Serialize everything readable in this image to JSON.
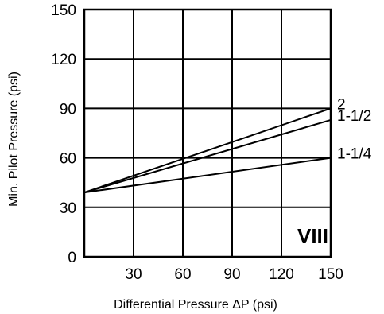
{
  "chart_data": {
    "type": "line",
    "title": "",
    "xlabel": "Differential Pressure ΔP (psi)",
    "ylabel": "Min. Pilot Pressure (psi)",
    "xlim": [
      0,
      150
    ],
    "ylim": [
      0,
      150
    ],
    "x_ticks": [
      30,
      60,
      90,
      120,
      150
    ],
    "y_ticks": [
      0,
      30,
      60,
      90,
      120,
      150
    ],
    "grid": true,
    "annotation": "VIII",
    "series": [
      {
        "name": "2",
        "x": [
          0,
          150
        ],
        "y": [
          39,
          90
        ]
      },
      {
        "name": "1-1/2",
        "x": [
          0,
          150
        ],
        "y": [
          39,
          83
        ]
      },
      {
        "name": "1-1/4",
        "x": [
          0,
          150
        ],
        "y": [
          39,
          60
        ]
      }
    ]
  }
}
